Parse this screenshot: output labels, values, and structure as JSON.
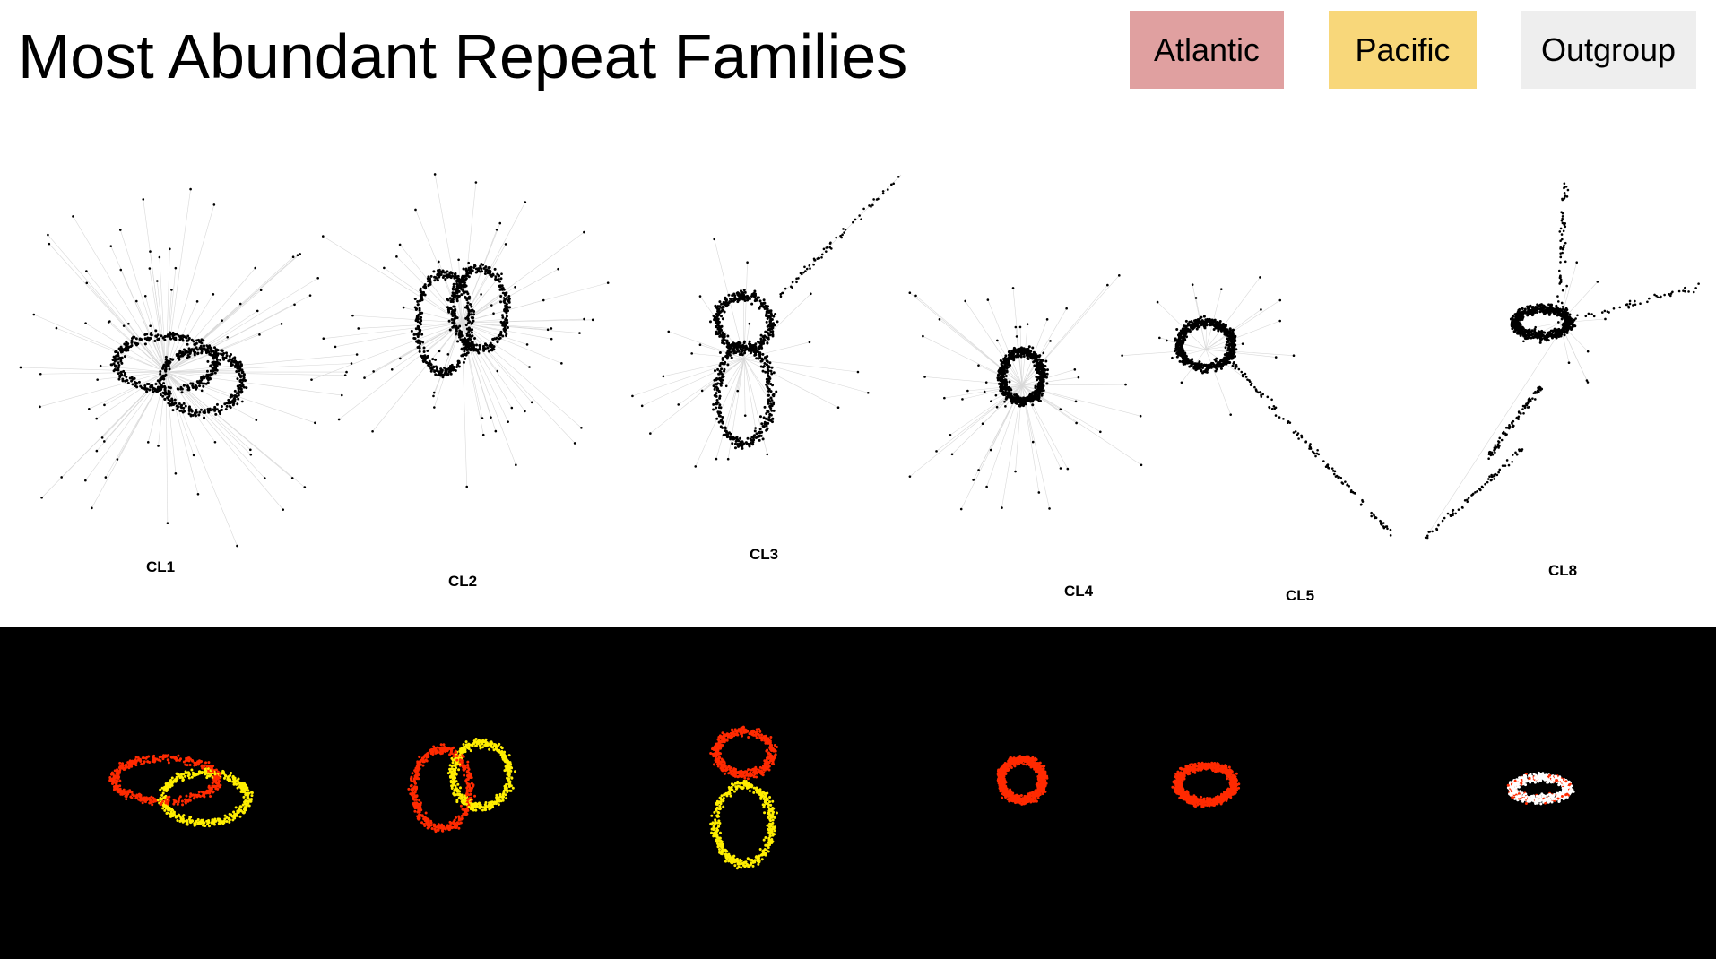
{
  "title": "Most Abundant Repeat Families",
  "legend": [
    {
      "key": "atlantic",
      "label": "Atlantic",
      "color": "#e0a0a0"
    },
    {
      "key": "pacific",
      "label": "Pacific",
      "color": "#f8d77a"
    },
    {
      "key": "outgroup",
      "label": "Outgroup",
      "color": "#eeeeee"
    }
  ],
  "clusters": [
    {
      "id": "cl1",
      "label": "CL1"
    },
    {
      "id": "cl2",
      "label": "CL2"
    },
    {
      "id": "cl3",
      "label": "CL3"
    },
    {
      "id": "cl4",
      "label": "CL4"
    },
    {
      "id": "cl5",
      "label": "CL5"
    },
    {
      "id": "cl8",
      "label": "CL8"
    }
  ],
  "heatmap_colors": {
    "atlantic": "#ff2a00",
    "pacific": "#ffee00",
    "outgroup": "#ffffff"
  }
}
